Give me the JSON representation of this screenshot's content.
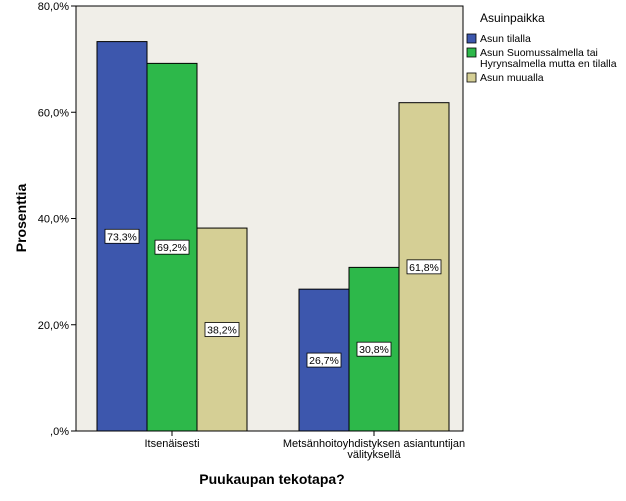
{
  "chart_data": {
    "type": "bar",
    "categories": [
      [
        "Itsenäisesti"
      ],
      [
        "Metsänhoitoyhdistyksen asiantuntijan",
        "välityksellä"
      ]
    ],
    "series": [
      {
        "name": "Asun tilalla",
        "values": [
          73.3,
          26.7
        ],
        "labels": [
          "73,3%",
          "26,7%"
        ],
        "color": "#3d57ad"
      },
      {
        "name": "Asun Suomussalmella tai Hyrynsalmella mutta en tilalla",
        "legend_lines": [
          "Asun Suomussalmella tai",
          "Hyrynsalmella mutta en tilalla"
        ],
        "values": [
          69.2,
          30.8
        ],
        "labels": [
          "69,2%",
          "30,8%"
        ],
        "color": "#2db84a"
      },
      {
        "name": "Asun muualla",
        "values": [
          38.2,
          61.8
        ],
        "labels": [
          "38,2%",
          "61,8%"
        ],
        "color": "#d5cf95"
      }
    ],
    "xlabel": "Puukaupan tekotapa?",
    "ylabel": "Prosenttia",
    "ylim": [
      0,
      80
    ],
    "yticks": [
      0,
      20,
      40,
      60,
      80
    ],
    "ytick_labels": [
      ",0%",
      "20,0%",
      "40,0%",
      "60,0%",
      "80,0%"
    ],
    "legend_title": "Asuinpaikka",
    "legend_position": "top-right",
    "plot_background": "#f0eee8",
    "grid": false
  }
}
